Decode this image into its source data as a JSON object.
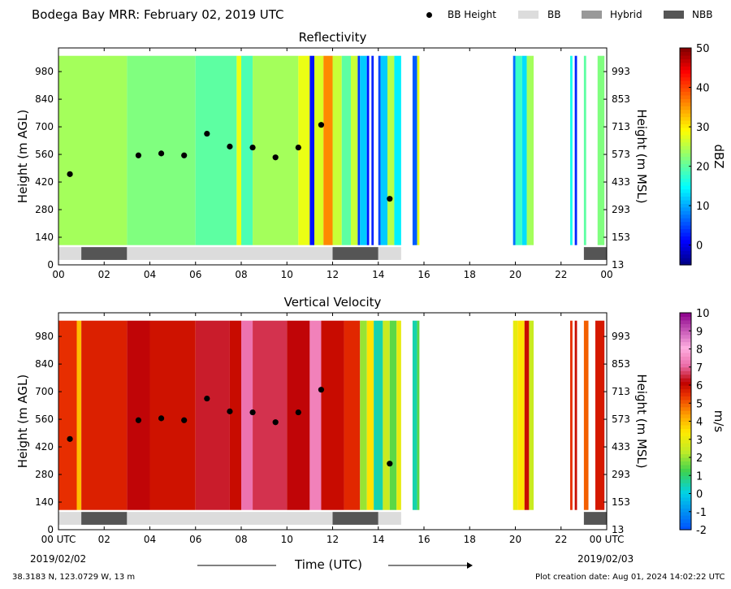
{
  "header": {
    "title": "Bodega Bay MRR:  February 02, 2019 UTC",
    "legend": [
      {
        "label": "BB Height",
        "kind": "marker",
        "color": "#000000"
      },
      {
        "label": "BB",
        "kind": "band",
        "color": "#dcdcdc"
      },
      {
        "label": "Hybrid",
        "kind": "band",
        "color": "#999999"
      },
      {
        "label": "NBB",
        "kind": "band",
        "color": "#555555"
      }
    ]
  },
  "footer": {
    "location": "38.3183 N, 123.0729 W, 13 m",
    "creation": "Plot creation date: Aug 01, 2024 14:02:22 UTC",
    "xlabel": "Time (UTC)",
    "date_start": "2019/02/02",
    "date_end": "2019/02/03"
  },
  "chart_data": [
    {
      "type": "heatmap",
      "title": "Reflectivity",
      "ylabel": "Height (m AGL)",
      "y2label": "Height (m MSL)",
      "xlim": [
        0,
        24
      ],
      "ylim": [
        0,
        1100
      ],
      "yticks": [
        0,
        140,
        280,
        420,
        560,
        700,
        840,
        980
      ],
      "y2ticks": [
        "13",
        "153",
        "293",
        "433",
        "573",
        "713",
        "853",
        "993"
      ],
      "xticks": [
        "00",
        "02",
        "04",
        "06",
        "08",
        "10",
        "12",
        "14",
        "16",
        "18",
        "20",
        "22",
        "00"
      ],
      "colorbar": {
        "label": "dBZ",
        "min": -5,
        "max": 50,
        "ticks": [
          0,
          10,
          20,
          30,
          40,
          50
        ],
        "tick_labels": [
          "0",
          "10",
          "20",
          "30",
          "40",
          "50"
        ],
        "colormap": "jet"
      },
      "data_height_range": [
        100,
        1060
      ],
      "columns": [
        {
          "t0": 0.0,
          "t1": 3.0,
          "v": 24
        },
        {
          "t0": 3.0,
          "t1": 6.0,
          "v": 22
        },
        {
          "t0": 6.0,
          "t1": 7.8,
          "v": 20
        },
        {
          "t0": 7.8,
          "t1": 8.0,
          "v": 28
        },
        {
          "t0": 8.0,
          "t1": 8.5,
          "v": 19
        },
        {
          "t0": 8.5,
          "t1": 10.5,
          "v": 24
        },
        {
          "t0": 10.5,
          "t1": 11.0,
          "v": 28
        },
        {
          "t0": 11.0,
          "t1": 11.2,
          "v": 2
        },
        {
          "t0": 11.2,
          "t1": 11.6,
          "v": 27
        },
        {
          "t0": 11.6,
          "t1": 12.0,
          "v": 36
        },
        {
          "t0": 12.0,
          "t1": 12.4,
          "v": 26
        },
        {
          "t0": 12.4,
          "t1": 12.8,
          "v": 20
        },
        {
          "t0": 12.8,
          "t1": 13.1,
          "v": 26
        },
        {
          "t0": 13.1,
          "t1": 13.2,
          "v": 4
        },
        {
          "t0": 13.2,
          "t1": 13.5,
          "v": 12
        },
        {
          "t0": 13.5,
          "t1": 13.6,
          "v": 2
        },
        {
          "t0": 13.7,
          "t1": 13.8,
          "v": 3
        },
        {
          "t0": 14.0,
          "t1": 14.1,
          "v": 5
        },
        {
          "t0": 14.1,
          "t1": 14.4,
          "v": 12
        },
        {
          "t0": 14.4,
          "t1": 14.7,
          "v": 25
        },
        {
          "t0": 14.7,
          "t1": 15.0,
          "v": 14
        },
        {
          "t0": 15.5,
          "t1": 15.7,
          "v": 6
        },
        {
          "t0": 15.7,
          "t1": 15.8,
          "v": 28
        },
        {
          "t0": 19.9,
          "t1": 20.0,
          "v": 7
        },
        {
          "t0": 20.0,
          "t1": 20.3,
          "v": 18
        },
        {
          "t0": 20.3,
          "t1": 20.5,
          "v": 13
        },
        {
          "t0": 20.5,
          "t1": 20.8,
          "v": 24
        },
        {
          "t0": 22.4,
          "t1": 22.5,
          "v": 16
        },
        {
          "t0": 22.6,
          "t1": 22.7,
          "v": 3
        },
        {
          "t0": 23.0,
          "t1": 23.1,
          "v": 20
        },
        {
          "t0": 23.6,
          "t1": 23.9,
          "v": 22
        }
      ],
      "bb_height": [
        {
          "t": 0.5,
          "h": 460
        },
        {
          "t": 3.5,
          "h": 555
        },
        {
          "t": 4.5,
          "h": 565
        },
        {
          "t": 5.5,
          "h": 555
        },
        {
          "t": 6.5,
          "h": 665
        },
        {
          "t": 7.5,
          "h": 600
        },
        {
          "t": 8.5,
          "h": 595
        },
        {
          "t": 9.5,
          "h": 545
        },
        {
          "t": 10.5,
          "h": 595
        },
        {
          "t": 11.5,
          "h": 710
        },
        {
          "t": 14.5,
          "h": 335
        }
      ],
      "bb_type": [
        {
          "t0": 0.0,
          "t1": 1.0,
          "type": "BB"
        },
        {
          "t0": 1.0,
          "t1": 3.0,
          "type": "NBB"
        },
        {
          "t0": 3.0,
          "t1": 12.0,
          "type": "BB"
        },
        {
          "t0": 12.0,
          "t1": 14.0,
          "type": "NBB"
        },
        {
          "t0": 14.0,
          "t1": 15.0,
          "type": "BB"
        },
        {
          "t0": 23.0,
          "t1": 24.0,
          "type": "NBB"
        }
      ]
    },
    {
      "type": "heatmap",
      "title": "Vertical Velocity",
      "ylabel": "Height (m AGL)",
      "y2label": "Height (m MSL)",
      "xlim": [
        0,
        24
      ],
      "ylim": [
        0,
        1100
      ],
      "yticks": [
        0,
        140,
        280,
        420,
        560,
        700,
        840,
        980
      ],
      "y2ticks": [
        "13",
        "153",
        "293",
        "433",
        "573",
        "713",
        "853",
        "993"
      ],
      "xticks": [
        "00 UTC",
        "02",
        "04",
        "06",
        "08",
        "10",
        "12",
        "14",
        "16",
        "18",
        "20",
        "22",
        "00 UTC"
      ],
      "colorbar": {
        "label": "m/s",
        "min": -2,
        "max": 10,
        "ticks": [
          -2,
          -1,
          0,
          1,
          2,
          3,
          4,
          5,
          6,
          7,
          8,
          9,
          10
        ],
        "tick_labels": [
          "-2",
          "-1",
          "0",
          "1",
          "2",
          "3",
          "4",
          "5",
          "6",
          "7",
          "8",
          "9",
          "10"
        ],
        "colormap": "velocity"
      },
      "data_height_range": [
        100,
        1060
      ],
      "columns": [
        {
          "t0": 0.0,
          "t1": 0.8,
          "v": 5.5
        },
        {
          "t0": 0.8,
          "t1": 1.0,
          "v": 4.0
        },
        {
          "t0": 1.0,
          "t1": 3.0,
          "v": 5.7
        },
        {
          "t0": 3.0,
          "t1": 4.0,
          "v": 6.2
        },
        {
          "t0": 4.0,
          "t1": 6.0,
          "v": 5.9
        },
        {
          "t0": 6.0,
          "t1": 7.5,
          "v": 6.4
        },
        {
          "t0": 7.5,
          "t1": 8.0,
          "v": 6.0
        },
        {
          "t0": 8.0,
          "t1": 8.5,
          "v": 7.2
        },
        {
          "t0": 8.5,
          "t1": 10.0,
          "v": 6.6
        },
        {
          "t0": 10.0,
          "t1": 11.0,
          "v": 6.2
        },
        {
          "t0": 11.0,
          "t1": 11.5,
          "v": 7.4
        },
        {
          "t0": 11.5,
          "t1": 12.5,
          "v": 6.0
        },
        {
          "t0": 12.5,
          "t1": 13.2,
          "v": 5.6
        },
        {
          "t0": 13.2,
          "t1": 13.5,
          "v": 2.0
        },
        {
          "t0": 13.5,
          "t1": 13.8,
          "v": 3.5
        },
        {
          "t0": 13.8,
          "t1": 14.2,
          "v": 0.5
        },
        {
          "t0": 14.2,
          "t1": 14.5,
          "v": 2.5
        },
        {
          "t0": 14.5,
          "t1": 14.8,
          "v": 1.5
        },
        {
          "t0": 14.8,
          "t1": 15.0,
          "v": 3.0
        },
        {
          "t0": 15.5,
          "t1": 15.7,
          "v": 0.5
        },
        {
          "t0": 15.7,
          "t1": 15.8,
          "v": 1.5
        },
        {
          "t0": 19.9,
          "t1": 20.1,
          "v": 3.0
        },
        {
          "t0": 20.1,
          "t1": 20.4,
          "v": 3.5
        },
        {
          "t0": 20.4,
          "t1": 20.6,
          "v": 6.0
        },
        {
          "t0": 20.6,
          "t1": 20.8,
          "v": 2.5
        },
        {
          "t0": 22.4,
          "t1": 22.5,
          "v": 5.5
        },
        {
          "t0": 22.6,
          "t1": 22.7,
          "v": 6.0
        },
        {
          "t0": 23.0,
          "t1": 23.2,
          "v": 5.0
        },
        {
          "t0": 23.5,
          "t1": 23.9,
          "v": 5.8
        }
      ],
      "bb_height": [
        {
          "t": 0.5,
          "h": 460
        },
        {
          "t": 3.5,
          "h": 555
        },
        {
          "t": 4.5,
          "h": 565
        },
        {
          "t": 5.5,
          "h": 555
        },
        {
          "t": 6.5,
          "h": 665
        },
        {
          "t": 7.5,
          "h": 600
        },
        {
          "t": 8.5,
          "h": 595
        },
        {
          "t": 9.5,
          "h": 545
        },
        {
          "t": 10.5,
          "h": 595
        },
        {
          "t": 11.5,
          "h": 710
        },
        {
          "t": 14.5,
          "h": 335
        }
      ],
      "bb_type": [
        {
          "t0": 0.0,
          "t1": 1.0,
          "type": "BB"
        },
        {
          "t0": 1.0,
          "t1": 3.0,
          "type": "NBB"
        },
        {
          "t0": 3.0,
          "t1": 12.0,
          "type": "BB"
        },
        {
          "t0": 12.0,
          "t1": 14.0,
          "type": "NBB"
        },
        {
          "t0": 14.0,
          "t1": 15.0,
          "type": "BB"
        },
        {
          "t0": 23.0,
          "t1": 24.0,
          "type": "NBB"
        }
      ]
    }
  ]
}
